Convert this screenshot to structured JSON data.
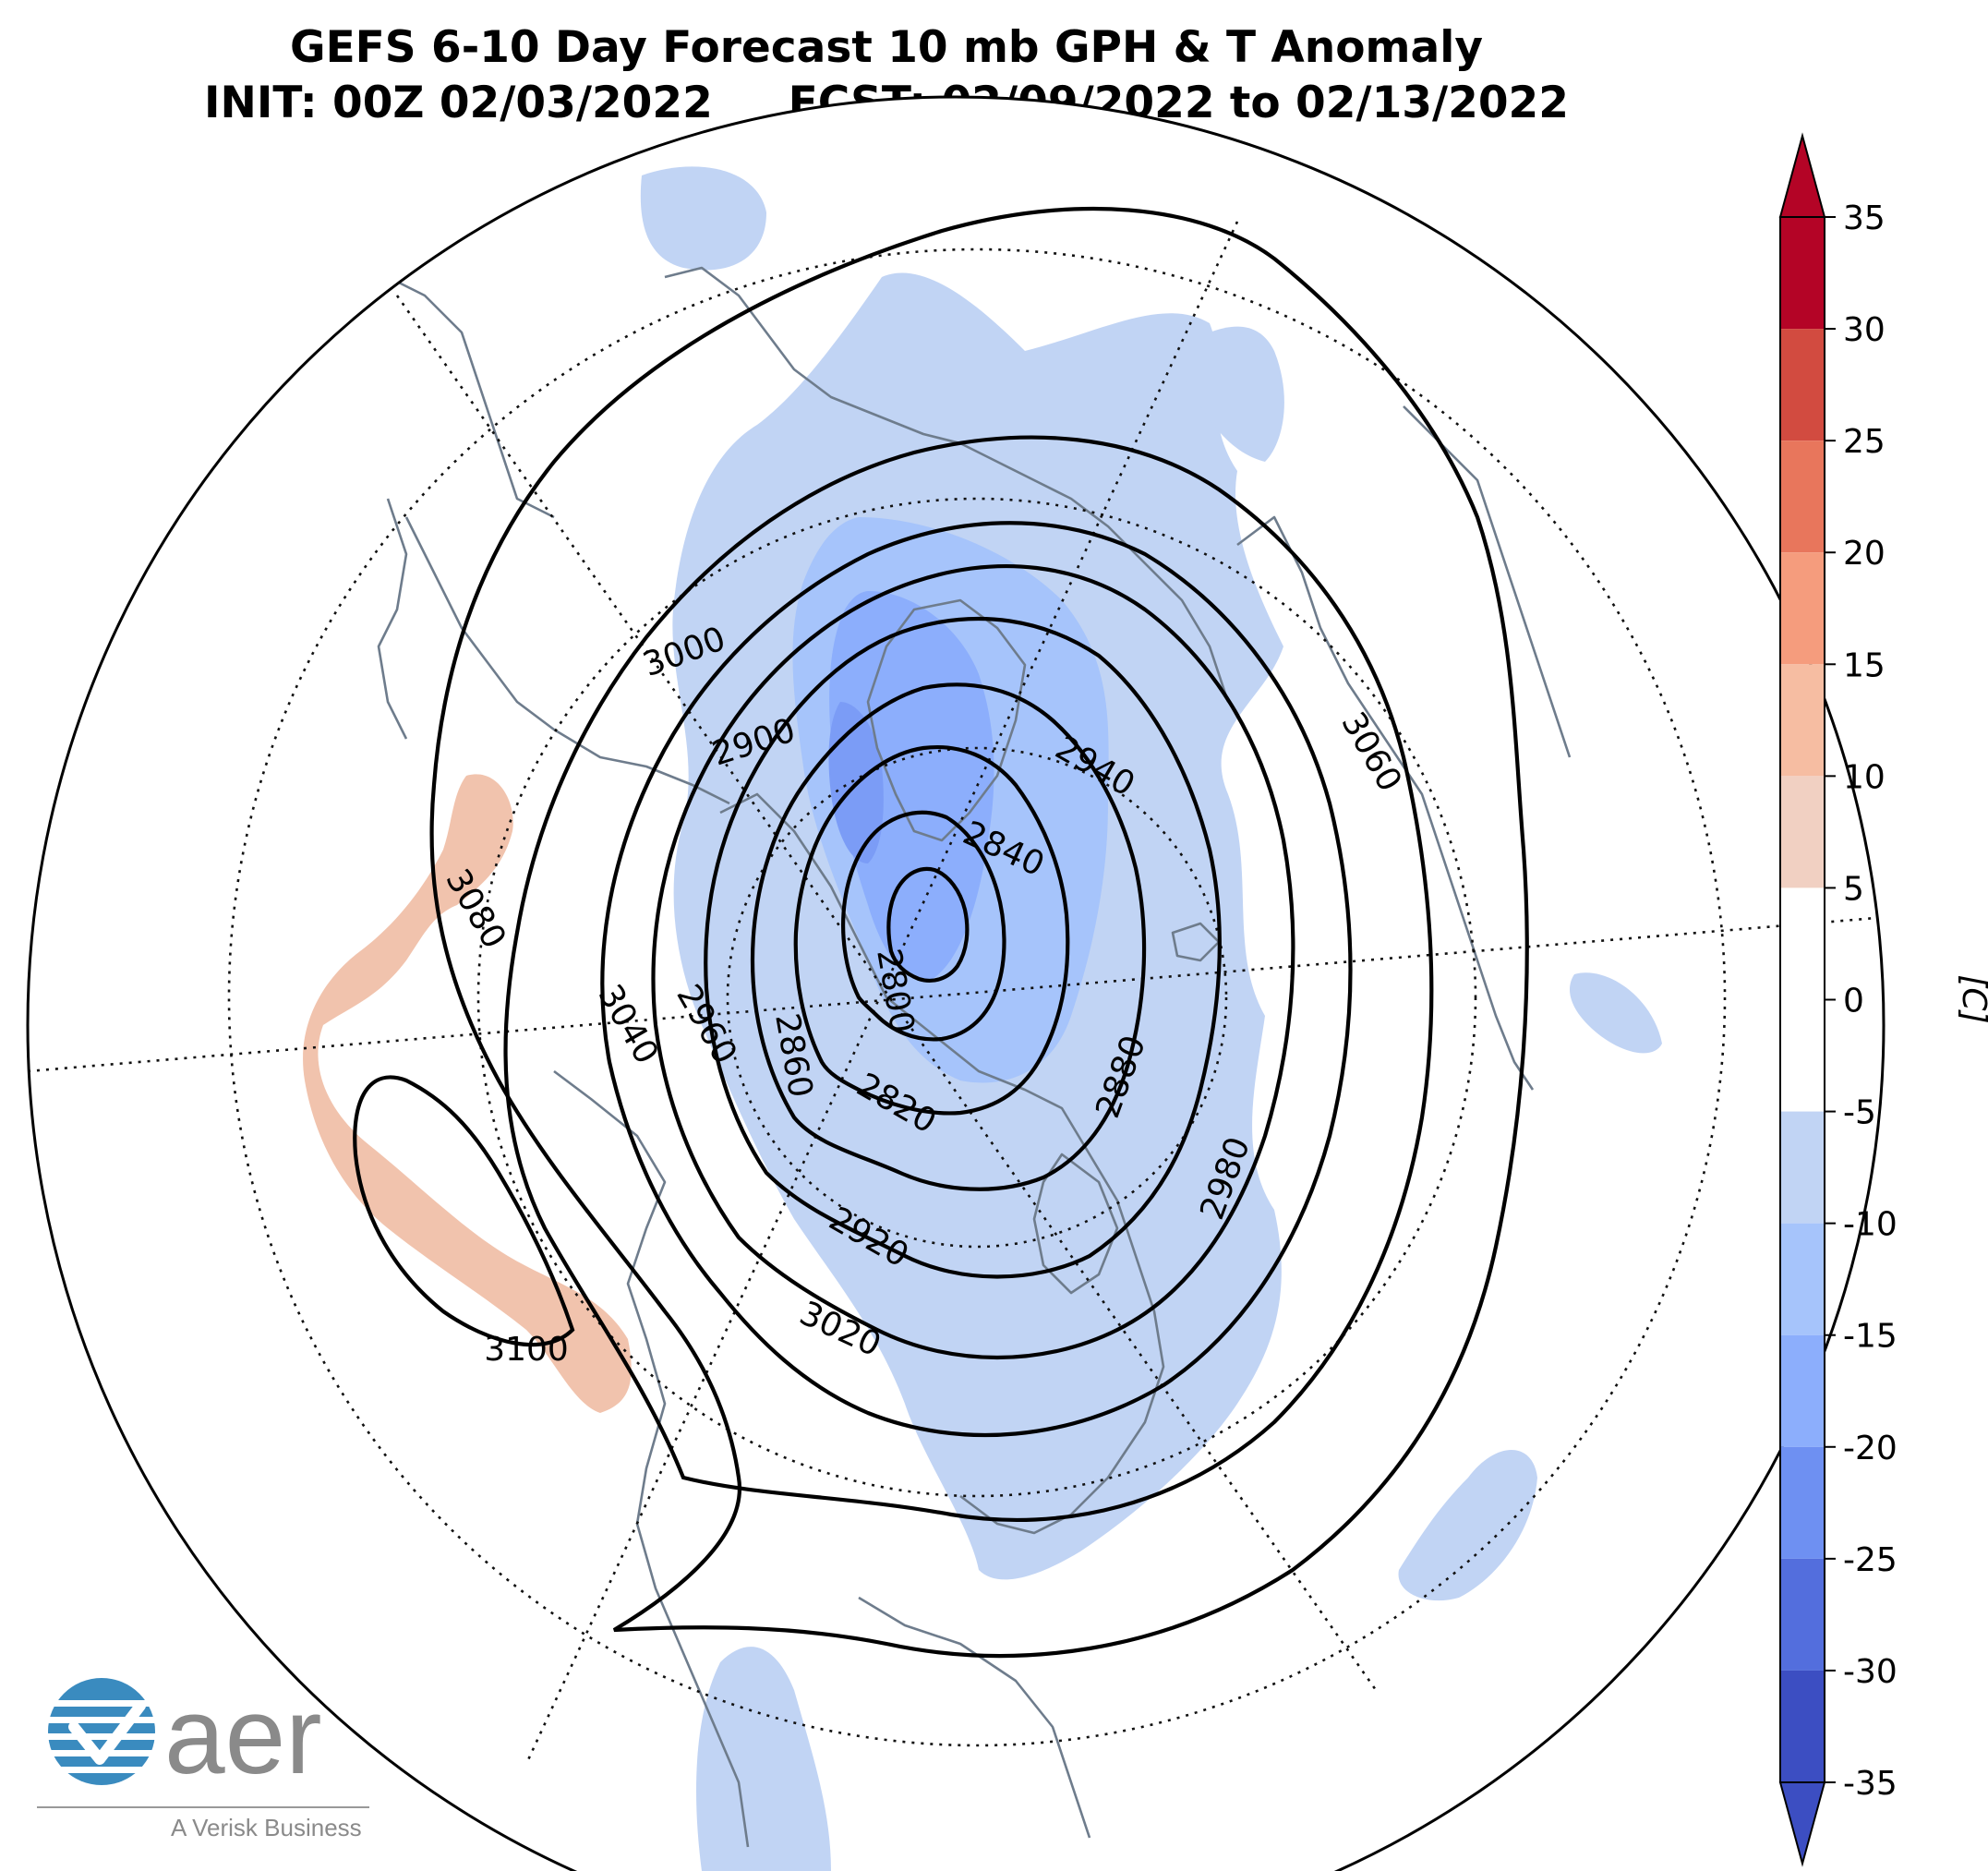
{
  "title": {
    "line1": "GEFS 6-10 Day Forecast 10 mb GPH & T Anomaly",
    "line2": "INIT: 00Z 02/03/2022     FCST: 02/09/2022 to 02/13/2022"
  },
  "colorbar": {
    "units": "[C]",
    "ticks": [
      "35",
      "30",
      "25",
      "20",
      "15",
      "10",
      "5",
      "0",
      "-5",
      "-10",
      "-15",
      "-20",
      "-25",
      "-30",
      "-35"
    ],
    "levels": [
      35,
      30,
      25,
      20,
      15,
      10,
      5,
      -5,
      -10,
      -15,
      -20,
      -25,
      -30,
      -35
    ],
    "colors": [
      "#b40426",
      "#d24b40",
      "#e8765c",
      "#f59c7d",
      "#f6bda2",
      "#f1d0c2",
      "#ffffff",
      "#c1d4f4",
      "#a6c4fb",
      "#8caefc",
      "#6e90f2",
      "#536edd",
      "#3c4ec2"
    ]
  },
  "contour_labels": [
    {
      "text": "3000",
      "name": "contour-label-3000"
    },
    {
      "text": "2900",
      "name": "contour-label-2900"
    },
    {
      "text": "2940",
      "name": "contour-label-2940"
    },
    {
      "text": "2840",
      "name": "contour-label-2840"
    },
    {
      "text": "2800",
      "name": "contour-label-2800"
    },
    {
      "text": "2860",
      "name": "contour-label-2860"
    },
    {
      "text": "2820",
      "name": "contour-label-2820"
    },
    {
      "text": "2880",
      "name": "contour-label-2880"
    },
    {
      "text": "2980",
      "name": "contour-label-2980"
    },
    {
      "text": "2920",
      "name": "contour-label-2920"
    },
    {
      "text": "3020",
      "name": "contour-label-3020"
    },
    {
      "text": "2960",
      "name": "contour-label-2960"
    },
    {
      "text": "3040",
      "name": "contour-label-3040"
    },
    {
      "text": "3080",
      "name": "contour-label-3080"
    },
    {
      "text": "3100",
      "name": "contour-label-3100"
    },
    {
      "text": "3060",
      "name": "contour-label-3060"
    }
  ],
  "shading": {
    "cold_light": "#c1d4f4",
    "cold_mid": "#a6c4fb",
    "cold_strong": "#8caefc",
    "cold_deep": "#7b9cf6",
    "warm": "#f1c3ad"
  },
  "logo": {
    "wordmark": "aer",
    "tagline": "A Verisk Business",
    "accent": "#3a8bbf"
  }
}
